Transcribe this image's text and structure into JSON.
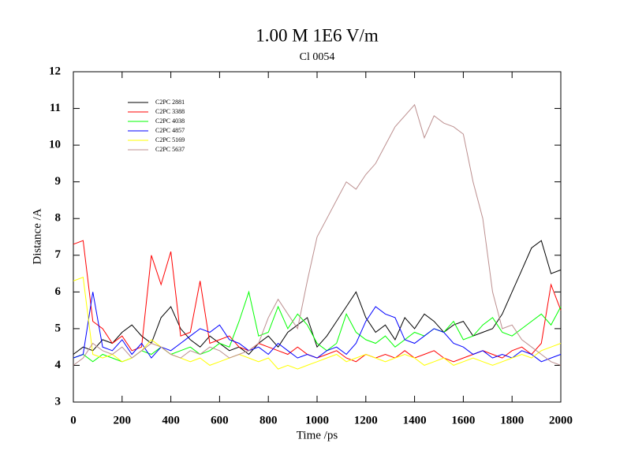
{
  "chart_data": {
    "type": "line",
    "title": "1.00 M 1E6 V/m",
    "subtitle": "Cl 0054",
    "x_label": "Time /ps",
    "y_label": "Distance /A",
    "x": [
      0,
      40,
      80,
      120,
      160,
      200,
      240,
      280,
      320,
      360,
      400,
      440,
      480,
      520,
      560,
      600,
      640,
      680,
      720,
      760,
      800,
      840,
      880,
      920,
      960,
      1000,
      1040,
      1080,
      1120,
      1160,
      1200,
      1240,
      1280,
      1320,
      1360,
      1400,
      1440,
      1480,
      1520,
      1560,
      1600,
      1640,
      1680,
      1720,
      1760,
      1800,
      1840,
      1880,
      1920,
      1960,
      2000
    ],
    "xlim": [
      0,
      2000
    ],
    "xticks": [
      0,
      200,
      400,
      600,
      800,
      1000,
      1200,
      1400,
      1600,
      1800,
      2000
    ],
    "ylim": [
      3,
      12
    ],
    "yticks": [
      3,
      4,
      5,
      6,
      7,
      8,
      9,
      10,
      11,
      12
    ],
    "legend": "upper-left",
    "series": [
      {
        "name": "C2PC 2881",
        "color": "#000000",
        "values": [
          4.3,
          4.5,
          4.4,
          4.7,
          4.6,
          4.9,
          5.1,
          4.8,
          4.6,
          5.3,
          5.6,
          5.0,
          4.7,
          4.5,
          4.8,
          4.6,
          4.4,
          4.5,
          4.3,
          4.6,
          4.8,
          4.5,
          4.9,
          5.1,
          5.3,
          4.5,
          4.8,
          5.2,
          5.6,
          6.0,
          5.3,
          4.9,
          5.1,
          4.7,
          5.3,
          5.0,
          5.4,
          5.2,
          4.9,
          5.1,
          5.2,
          4.8,
          4.9,
          5.0,
          5.4,
          6.0,
          6.6,
          7.2,
          7.4,
          6.5,
          6.6
        ]
      },
      {
        "name": "C2PC 3388",
        "color": "#ff0000",
        "values": [
          7.3,
          7.4,
          5.2,
          5.0,
          4.6,
          4.8,
          4.4,
          4.5,
          7.0,
          6.2,
          7.1,
          4.8,
          4.9,
          6.3,
          4.6,
          4.7,
          4.8,
          4.5,
          4.4,
          4.6,
          4.5,
          4.4,
          4.3,
          4.5,
          4.3,
          4.2,
          4.3,
          4.4,
          4.2,
          4.1,
          4.3,
          4.2,
          4.3,
          4.2,
          4.4,
          4.2,
          4.3,
          4.4,
          4.2,
          4.1,
          4.2,
          4.3,
          4.4,
          4.3,
          4.2,
          4.4,
          4.5,
          4.3,
          4.6,
          6.2,
          5.5
        ]
      },
      {
        "name": "C2PC 4038",
        "color": "#00ff00",
        "values": [
          4.2,
          4.3,
          4.1,
          4.3,
          4.2,
          4.1,
          4.2,
          4.4,
          4.3,
          4.5,
          4.3,
          4.4,
          4.5,
          4.3,
          4.4,
          4.6,
          4.5,
          5.2,
          6.0,
          4.8,
          4.9,
          5.6,
          5.0,
          5.4,
          5.1,
          4.6,
          4.4,
          4.6,
          5.4,
          4.9,
          4.7,
          4.6,
          4.8,
          4.5,
          4.7,
          4.9,
          4.8,
          5.0,
          4.9,
          5.2,
          4.7,
          4.8,
          5.1,
          5.3,
          4.9,
          4.8,
          5.0,
          5.2,
          5.4,
          5.1,
          5.6
        ]
      },
      {
        "name": "C2PC 4857",
        "color": "#0000ff",
        "values": [
          4.2,
          4.3,
          6.0,
          4.5,
          4.4,
          4.7,
          4.3,
          4.6,
          4.2,
          4.5,
          4.4,
          4.6,
          4.8,
          5.0,
          4.9,
          5.1,
          4.7,
          4.6,
          4.4,
          4.5,
          4.3,
          4.6,
          4.4,
          4.2,
          4.3,
          4.2,
          4.4,
          4.5,
          4.3,
          4.6,
          5.2,
          5.6,
          5.4,
          5.3,
          4.7,
          4.6,
          4.8,
          5.0,
          4.9,
          4.6,
          4.5,
          4.3,
          4.4,
          4.2,
          4.3,
          4.2,
          4.4,
          4.3,
          4.1,
          4.2,
          4.3
        ]
      },
      {
        "name": "C2PC 5169",
        "color": "#ffff00",
        "values": [
          6.3,
          6.4,
          4.3,
          4.2,
          4.3,
          4.1,
          4.2,
          4.4,
          4.7,
          4.5,
          4.3,
          4.2,
          4.1,
          4.2,
          4.0,
          4.1,
          4.2,
          4.3,
          4.2,
          4.1,
          4.2,
          3.9,
          4.0,
          3.9,
          4.0,
          4.1,
          4.2,
          4.3,
          4.1,
          4.2,
          4.3,
          4.2,
          4.1,
          4.2,
          4.3,
          4.2,
          4.0,
          4.1,
          4.2,
          4.0,
          4.1,
          4.2,
          4.1,
          4.0,
          4.1,
          4.2,
          4.3,
          4.2,
          4.4,
          4.5,
          4.6
        ]
      },
      {
        "name": "C2PC 5637",
        "color": "#bc8f8f",
        "values": [
          4.0,
          4.2,
          4.6,
          4.4,
          4.3,
          4.5,
          4.2,
          4.4,
          4.6,
          4.5,
          4.3,
          4.2,
          4.4,
          4.3,
          4.5,
          4.4,
          4.2,
          4.3,
          4.4,
          4.6,
          5.3,
          5.8,
          5.4,
          5.0,
          6.3,
          7.5,
          8.0,
          8.5,
          9.0,
          8.8,
          9.2,
          9.5,
          10.0,
          10.5,
          10.8,
          11.1,
          10.2,
          10.8,
          10.6,
          10.5,
          10.3,
          9.0,
          8.0,
          6.0,
          5.0,
          5.1,
          4.7,
          4.5,
          4.3,
          4.1,
          4.0
        ]
      }
    ]
  }
}
